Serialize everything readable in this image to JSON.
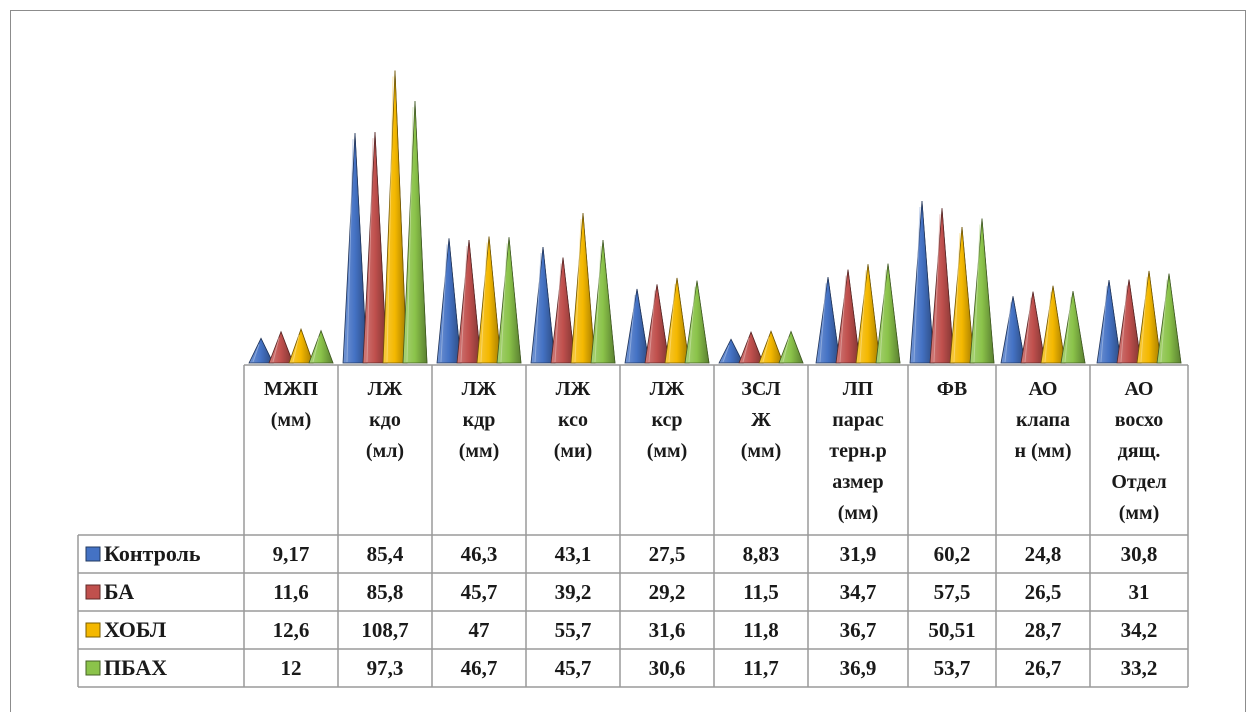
{
  "chart_data": {
    "type": "bar",
    "title": "",
    "categories": [
      [
        "МЖП",
        "(мм)"
      ],
      [
        "ЛЖ",
        "кдо",
        "(мл)"
      ],
      [
        "ЛЖ",
        "кдр",
        "(мм)"
      ],
      [
        "ЛЖ",
        "ксо",
        "(ми)"
      ],
      [
        "ЛЖ",
        "кср",
        "(мм)"
      ],
      [
        "ЗСЛ",
        "Ж",
        "(мм)"
      ],
      [
        "ЛП",
        "парас",
        "терн.р",
        "азмер",
        "(мм)"
      ],
      [
        "ФВ"
      ],
      [
        "АО",
        "клапа",
        "н (мм)"
      ],
      [
        "АО",
        "восхо",
        "дящ.",
        "Отдел",
        "(мм)"
      ]
    ],
    "series": [
      {
        "name": "Контроль",
        "color": "#4472C4",
        "values": [
          9.17,
          85.4,
          46.3,
          43.1,
          27.5,
          8.83,
          31.9,
          60.2,
          24.8,
          30.8
        ],
        "labels": [
          "9,17",
          "85,4",
          "46,3",
          "43,1",
          "27,5",
          "8,83",
          "31,9",
          "60,2",
          "24,8",
          "30,8"
        ]
      },
      {
        "name": "БА",
        "color": "#C0504D",
        "values": [
          11.6,
          85.8,
          45.7,
          39.2,
          29.2,
          11.5,
          34.7,
          57.5,
          26.5,
          31
        ],
        "labels": [
          "11,6",
          "85,8",
          "45,7",
          "39,2",
          "29,2",
          "11,5",
          "34,7",
          "57,5",
          "26,5",
          "31"
        ]
      },
      {
        "name": "ХОБЛ",
        "color": "#F4B800",
        "values": [
          12.6,
          108.7,
          47,
          55.7,
          31.6,
          11.8,
          36.7,
          50.51,
          28.7,
          34.2
        ],
        "labels": [
          "12,6",
          "108,7",
          "47",
          "55,7",
          "31,6",
          "11,8",
          "36,7",
          "50,51",
          "28,7",
          "34,2"
        ]
      },
      {
        "name": "ПБАХ",
        "color": "#8BC34A",
        "values": [
          12,
          97.3,
          46.7,
          45.7,
          30.6,
          11.7,
          36.9,
          53.7,
          26.7,
          33.2
        ],
        "labels": [
          "12",
          "97,3",
          "46,7",
          "45,7",
          "30,6",
          "11,7",
          "36,9",
          "53,7",
          "26,7",
          "33,2"
        ]
      }
    ],
    "ylim": [
      0,
      110
    ],
    "legend": "data-table",
    "grid": false,
    "data_table": true,
    "bar_shape": "pyramid"
  }
}
